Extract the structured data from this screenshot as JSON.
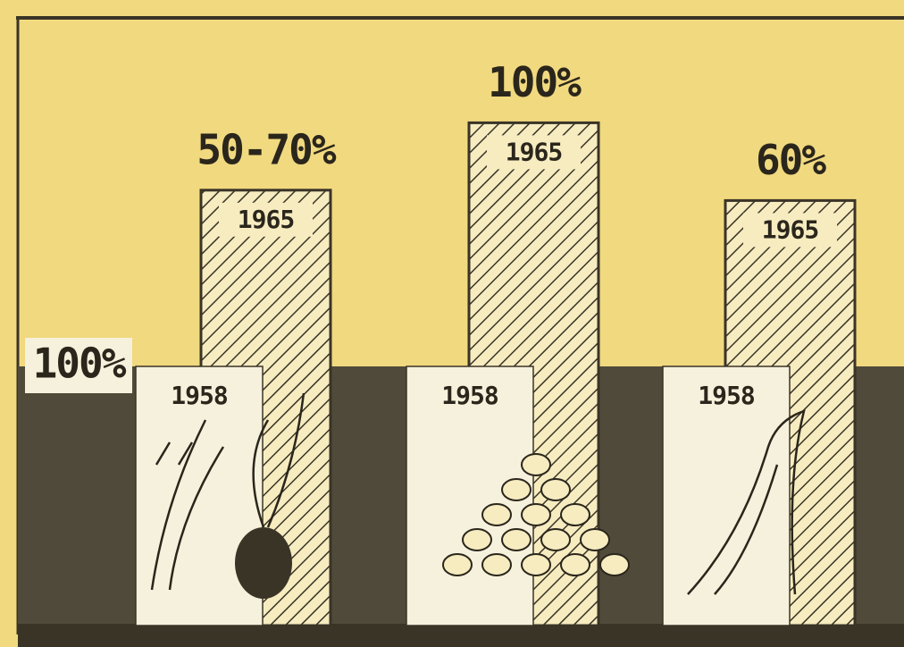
{
  "chart_data": {
    "type": "bar",
    "categories": [
      null,
      null,
      null
    ],
    "series": [
      {
        "name": "1958",
        "color": "#f6f1dc",
        "values": [
          100,
          100,
          100
        ]
      },
      {
        "name": "1965",
        "color": "#3a3427",
        "values": [
          168,
          194,
          164
        ]
      }
    ],
    "baseline_label": "100%",
    "annotations": [
      "50-70%",
      "100%",
      "60%"
    ]
  }
}
